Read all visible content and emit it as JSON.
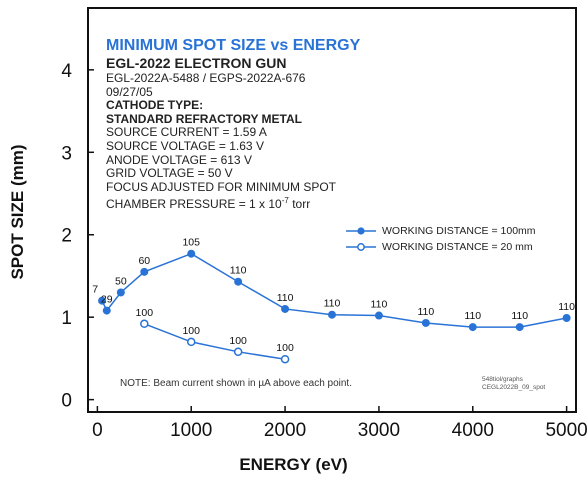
{
  "header": {
    "title": "MINIMUM SPOT SIZE vs ENERGY",
    "subtitle": "EGL-2022 ELECTRON GUN",
    "model": "EGL-2022A-5488 /  EGPS-2022A-676",
    "date": "09/27/05"
  },
  "conditions": {
    "cathode_label": "CATHODE TYPE:",
    "cathode_value": "STANDARD REFRACTORY METAL",
    "source_current": "SOURCE CURRENT = 1.59 A",
    "source_voltage": "SOURCE VOLTAGE = 1.63 V",
    "anode_voltage": "ANODE VOLTAGE = 613 V",
    "grid_voltage": "GRID VOLTAGE = 50 V",
    "focus": "FOCUS ADJUSTED FOR MINIMUM SPOT",
    "pressure_prefix": "CHAMBER PRESSURE = 1 x 10",
    "pressure_exp": "-7",
    "pressure_unit": " torr"
  },
  "note": "NOTE: Beam current shown in µA above each point.",
  "stamp": {
    "line1": "548tiol/graphs",
    "line2": "CEGL2022B_09_spot"
  },
  "colors": {
    "series": "#2a73d6",
    "title": "#2a73d6",
    "frame": "#111111"
  },
  "chart_data": {
    "type": "line",
    "xlabel": "ENERGY (eV)",
    "ylabel": "SPOT SIZE (mm)",
    "xlim": [
      -100,
      5100
    ],
    "ylim": [
      -0.15,
      4.75
    ],
    "xticks": [
      0,
      1000,
      2000,
      3000,
      4000,
      5000
    ],
    "yticks": [
      0,
      1,
      2,
      3,
      4
    ],
    "grid": false,
    "legend_position": "middle-right",
    "series": [
      {
        "name": "WORKING DISTANCE = 100mm",
        "marker": "filled-circle",
        "x": [
          50,
          100,
          250,
          500,
          1000,
          1500,
          2000,
          2500,
          3000,
          3500,
          4000,
          4500,
          5000
        ],
        "y": [
          1.2,
          1.08,
          1.3,
          1.55,
          1.77,
          1.43,
          1.1,
          1.03,
          1.02,
          0.93,
          0.88,
          0.88,
          0.99
        ],
        "labels": [
          "7",
          "29",
          "50",
          "60",
          "105",
          "110",
          "110",
          "110",
          "110",
          "110",
          "110",
          "110",
          "110"
        ]
      },
      {
        "name": "WORKING DISTANCE = 20 mm",
        "marker": "open-circle",
        "x": [
          500,
          1000,
          1500,
          2000
        ],
        "y": [
          0.92,
          0.7,
          0.58,
          0.49
        ],
        "labels": [
          "100",
          "100",
          "100",
          "100"
        ]
      }
    ]
  }
}
